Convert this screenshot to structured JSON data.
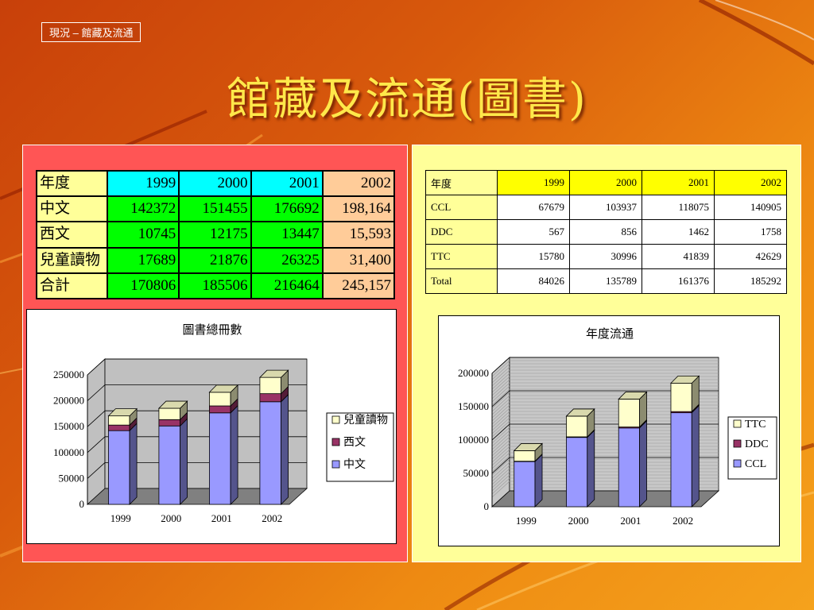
{
  "breadcrumb": "現況 – 館藏及流通",
  "title": "館藏及流通(圖書)",
  "colors": {
    "chinese_ccl": "#9999ff",
    "western_ddc": "#993366",
    "children_ttc": "#ffffcc"
  },
  "table_books": {
    "header": [
      "年度",
      "1999",
      "2000",
      "2001",
      "2002"
    ],
    "rows": [
      [
        "中文",
        "142372",
        "151455",
        "176692",
        "198,164"
      ],
      [
        "西文",
        "10745",
        "12175",
        "13447",
        "15,593"
      ],
      [
        "兒童讀物",
        "17689",
        "21876",
        "26325",
        "31,400"
      ],
      [
        "合計",
        "170806",
        "185506",
        "216464",
        "245,157"
      ]
    ]
  },
  "table_circulation": {
    "header": [
      "年度",
      "1999",
      "2000",
      "2001",
      "2002"
    ],
    "rows": [
      [
        "CCL",
        "67679",
        "103937",
        "118075",
        "140905"
      ],
      [
        "DDC",
        "567",
        "856",
        "1462",
        "1758"
      ],
      [
        "TTC",
        "15780",
        "30996",
        "41839",
        "42629"
      ],
      [
        "Total",
        "84026",
        "135789",
        "161376",
        "185292"
      ]
    ]
  },
  "chart_data": [
    {
      "type": "bar",
      "stacked": true,
      "title": "圖書總冊數",
      "categories": [
        "1999",
        "2000",
        "2001",
        "2002"
      ],
      "series": [
        {
          "name": "中文",
          "values": [
            142372,
            151455,
            176692,
            198164
          ],
          "color": "#9999ff"
        },
        {
          "name": "西文",
          "values": [
            10745,
            12175,
            13447,
            15593
          ],
          "color": "#993366"
        },
        {
          "name": "兒童讀物",
          "values": [
            17689,
            21876,
            26325,
            31400
          ],
          "color": "#ffffcc"
        }
      ],
      "ylim": [
        0,
        250000
      ],
      "yticks": [
        "0",
        "50000",
        "100000",
        "150000",
        "200000",
        "250000"
      ],
      "grid": true,
      "legend": "right"
    },
    {
      "type": "bar",
      "stacked": true,
      "title": "年度流通",
      "categories": [
        "1999",
        "2000",
        "2001",
        "2002"
      ],
      "series": [
        {
          "name": "CCL",
          "values": [
            67679,
            103937,
            118075,
            140905
          ],
          "color": "#9999ff"
        },
        {
          "name": "DDC",
          "values": [
            567,
            856,
            1462,
            1758
          ],
          "color": "#993366"
        },
        {
          "name": "TTC",
          "values": [
            15780,
            30996,
            41839,
            42629
          ],
          "color": "#ffffcc"
        }
      ],
      "ylim": [
        0,
        200000
      ],
      "yticks": [
        "0",
        "50000",
        "100000",
        "150000",
        "200000"
      ],
      "grid": true,
      "legend": "right"
    }
  ]
}
